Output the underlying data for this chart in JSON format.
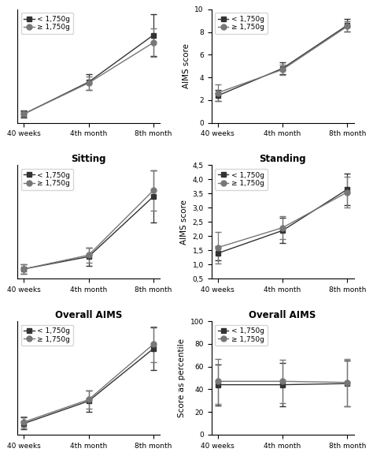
{
  "xticklabels": [
    "40 weeks",
    "4th month",
    "8th month"
  ],
  "x": [
    0,
    1,
    2
  ],
  "plots": [
    {
      "title": "",
      "ylabel": "",
      "ylim": [
        null,
        null
      ],
      "yticks": null,
      "yticklabels": null,
      "series": [
        {
          "label": "< 1,750g",
          "marker": "s",
          "color": "#333333",
          "means": [
            1.3,
            3.0,
            5.5
          ],
          "errs": [
            0.2,
            0.4,
            1.1
          ]
        },
        {
          "label": "≥ 1,750g",
          "marker": "o",
          "color": "#777777",
          "means": [
            1.3,
            2.95,
            5.1
          ],
          "errs": [
            0.15,
            0.35,
            0.75
          ]
        }
      ]
    },
    {
      "title": "",
      "ylabel": "AIMS score",
      "ylim": [
        0,
        10
      ],
      "yticks": [
        0,
        2,
        4,
        6,
        8,
        10
      ],
      "yticklabels": [
        "0",
        "2",
        "4",
        "6",
        "8",
        "10"
      ],
      "series": [
        {
          "label": "< 1,750g",
          "marker": "s",
          "color": "#333333",
          "means": [
            2.4,
            4.8,
            8.6
          ],
          "errs": [
            0.5,
            0.5,
            0.55
          ]
        },
        {
          "label": "≥ 1,750g",
          "marker": "o",
          "color": "#777777",
          "means": [
            2.65,
            4.7,
            8.5
          ],
          "errs": [
            0.75,
            0.45,
            0.45
          ]
        }
      ]
    },
    {
      "title": "Sitting",
      "ylabel": "",
      "ylim": [
        null,
        null
      ],
      "yticks": null,
      "yticklabels": null,
      "series": [
        {
          "label": "< 1,750g",
          "marker": "s",
          "color": "#333333",
          "means": [
            1.2,
            1.6,
            3.55
          ],
          "errs": [
            0.15,
            0.3,
            0.85
          ]
        },
        {
          "label": "≥ 1,750g",
          "marker": "o",
          "color": "#777777",
          "means": [
            1.2,
            1.65,
            3.75
          ],
          "errs": [
            0.15,
            0.25,
            0.65
          ]
        }
      ]
    },
    {
      "title": "Standing",
      "ylabel": "AIMS score",
      "ylim": [
        0.5,
        4.5
      ],
      "yticks": [
        0.5,
        1.0,
        1.5,
        2.0,
        2.5,
        3.0,
        3.5,
        4.0,
        4.5
      ],
      "yticklabels": [
        "0,5",
        "1,0",
        "1,5",
        "2,0",
        "2,5",
        "3,0",
        "3,5",
        "4,0",
        "4,5"
      ],
      "series": [
        {
          "label": "< 1,750g",
          "marker": "s",
          "color": "#333333",
          "means": [
            1.4,
            2.2,
            3.65
          ],
          "errs": [
            0.25,
            0.45,
            0.55
          ]
        },
        {
          "label": "≥ 1,750g",
          "marker": "o",
          "color": "#777777",
          "means": [
            1.6,
            2.3,
            3.55
          ],
          "errs": [
            0.55,
            0.4,
            0.55
          ]
        }
      ]
    },
    {
      "title": "Overall AIMS",
      "ylabel": "",
      "ylim": [
        null,
        null
      ],
      "yticks": null,
      "yticklabels": null,
      "series": [
        {
          "label": "< 1,750g",
          "marker": "s",
          "color": "#333333",
          "means": [
            25,
            40,
            75
          ],
          "errs": [
            4,
            7,
            14
          ]
        },
        {
          "label": "≥ 1,750g",
          "marker": "o",
          "color": "#777777",
          "means": [
            26,
            41,
            78
          ],
          "errs": [
            3.5,
            6,
            12
          ]
        }
      ]
    },
    {
      "title": "Overall AIMS",
      "ylabel": "Score as percentile",
      "ylim": [
        0,
        100
      ],
      "yticks": [
        0,
        20,
        40,
        60,
        80,
        100
      ],
      "yticklabels": [
        "0",
        "20",
        "40",
        "60",
        "80",
        "100"
      ],
      "series": [
        {
          "label": "< 1,750g",
          "marker": "s",
          "color": "#333333",
          "means": [
            44,
            44,
            45
          ],
          "errs": [
            18,
            19,
            20
          ]
        },
        {
          "label": "≥ 1,750g",
          "marker": "o",
          "color": "#777777",
          "means": [
            47,
            47,
            46
          ],
          "errs": [
            20,
            19,
            21
          ]
        }
      ]
    }
  ],
  "marker_size": 5,
  "capsize": 3,
  "elinewidth": 0.9,
  "linewidth": 1.0,
  "legend_fontsize": 6.5,
  "tick_fontsize": 6.5,
  "label_fontsize": 7.5,
  "title_fontsize": 8.5
}
